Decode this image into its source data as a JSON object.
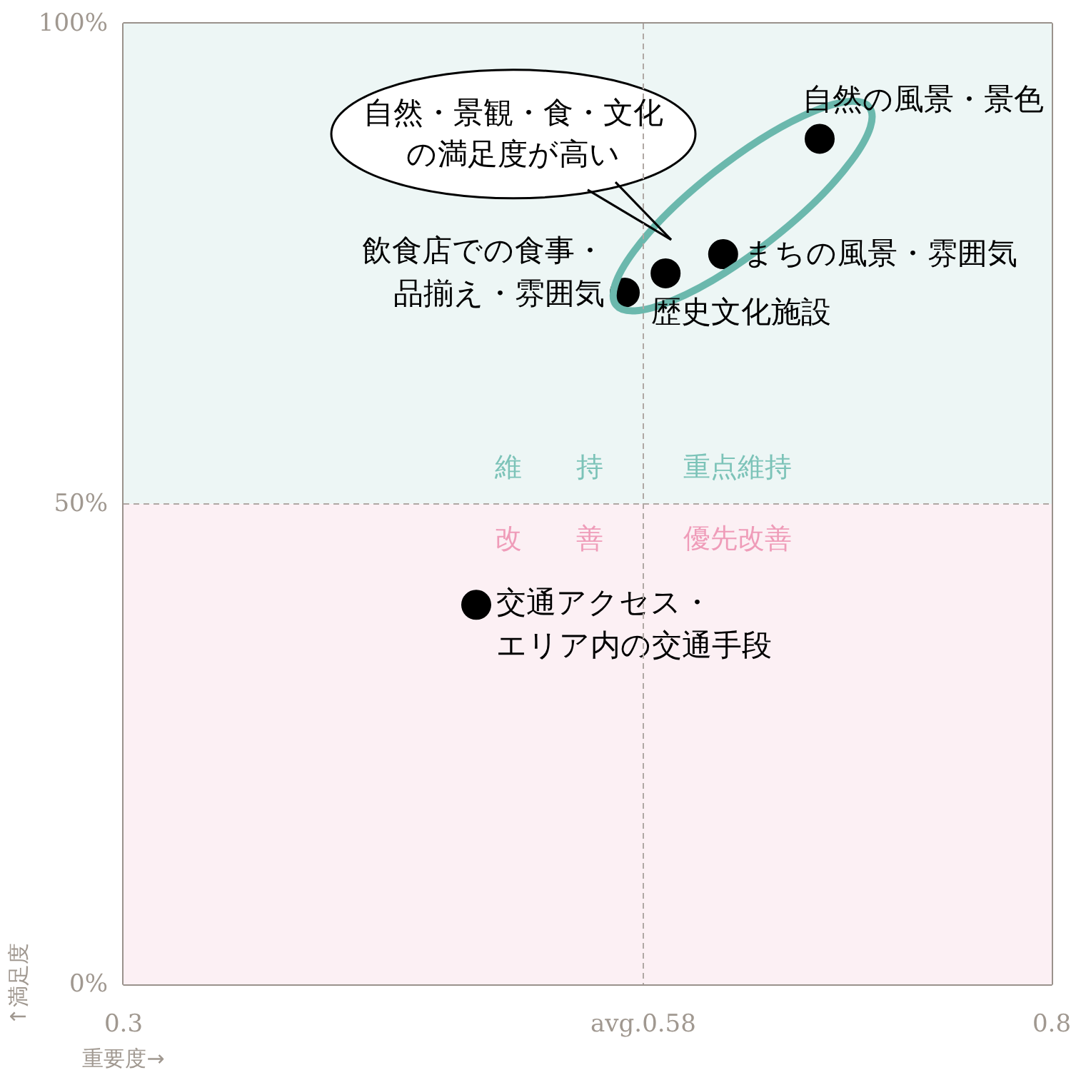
{
  "chart_data": {
    "type": "scatter",
    "xlabel": "重要度→",
    "ylabel": "↑満足度",
    "x": [
      0.675,
      0.623,
      0.592,
      0.57,
      0.49
    ],
    "series": [
      {
        "color": "#000000",
        "values": [
          88,
          76,
          74,
          72,
          39.5
        ]
      }
    ],
    "marker": "circle",
    "xlim": [
      0.3,
      0.8
    ],
    "ylim": [
      0,
      100
    ],
    "xticks": [
      0.3,
      {
        "value": 0.58,
        "label": "avg.0.58"
      },
      0.8
    ],
    "yticks": [
      {
        "value": 0,
        "label": "0%"
      },
      {
        "value": 50,
        "label": "50%"
      },
      {
        "value": 100,
        "label": "100%"
      }
    ],
    "bands": [
      {
        "axis": "y",
        "from": 50,
        "to": 100,
        "color": "#edf6f5"
      },
      {
        "axis": "y",
        "from": 0,
        "to": 50,
        "color": "#fcf0f4"
      }
    ],
    "ref_lines": [
      {
        "axis": "x",
        "value": 0.58,
        "line_style": "dashed",
        "color": "#b0a8a4"
      },
      {
        "axis": "y",
        "value": 50,
        "line_style": "dashed",
        "color": "#b0a8a4"
      }
    ],
    "annotations": [
      {
        "text": "自然の風景・景色",
        "x": 0.675,
        "y": 88
      },
      {
        "text": "まちの風景・雰囲気",
        "x": 0.623,
        "y": 76
      },
      {
        "text": "歴史文化施設",
        "x": 0.592,
        "y": 74
      },
      {
        "text": "飲食店での食事・品揃え・雰囲気",
        "x": 0.57,
        "y": 72
      },
      {
        "text": "交通アクセス・エリア内の交通手段",
        "x": 0.49,
        "y": 39.5
      },
      "維　　持",
      "重点維持",
      "改　　善",
      "優先改善",
      "自然・景観・食・文化の満足度が高い"
    ]
  }
}
